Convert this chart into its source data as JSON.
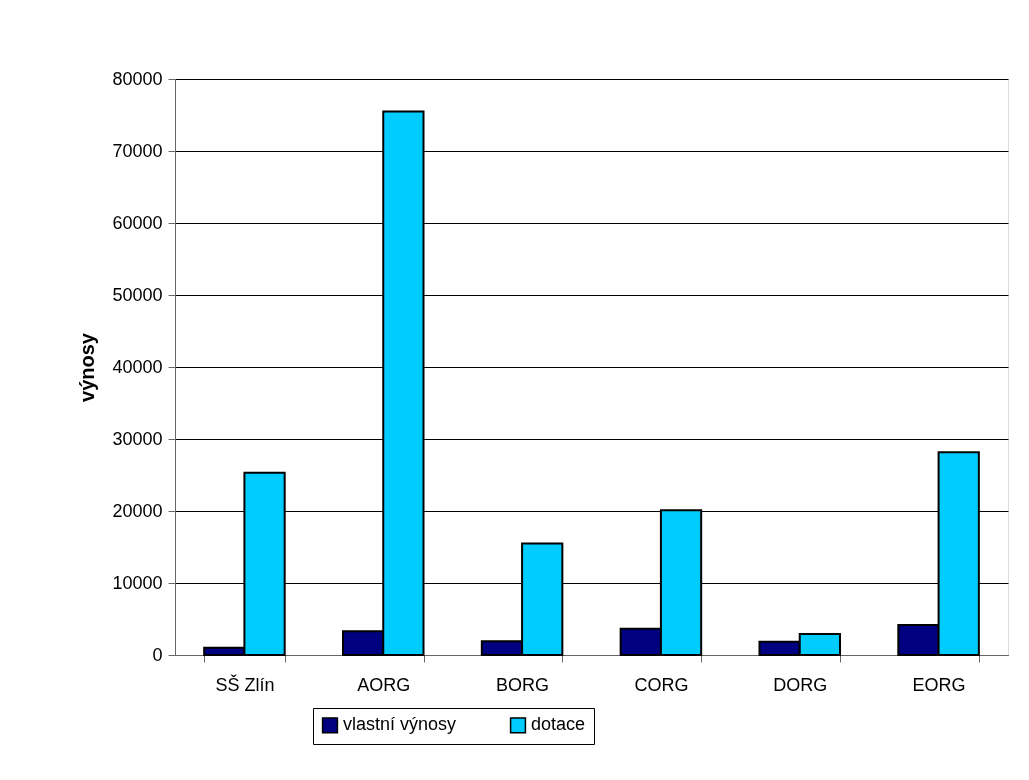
{
  "chart_data": {
    "type": "bar",
    "ylabel": "výnosy",
    "categories": [
      "SŠ Zlín",
      "AORG",
      "BORG",
      "CORG",
      "DORG",
      "EORG"
    ],
    "series": [
      {
        "name": "vlastní výnosy",
        "color": "#000080",
        "values": [
          1000,
          3300,
          1900,
          3650,
          1850,
          4150
        ]
      },
      {
        "name": "dotace",
        "color": "#00ccff",
        "values": [
          25300,
          75500,
          15500,
          20100,
          2900,
          28150
        ]
      }
    ],
    "ylim": [
      0,
      80000
    ],
    "yticks": [
      0,
      10000,
      20000,
      30000,
      40000,
      50000,
      60000,
      70000,
      80000
    ],
    "grid": "y",
    "legend": "bottom"
  }
}
